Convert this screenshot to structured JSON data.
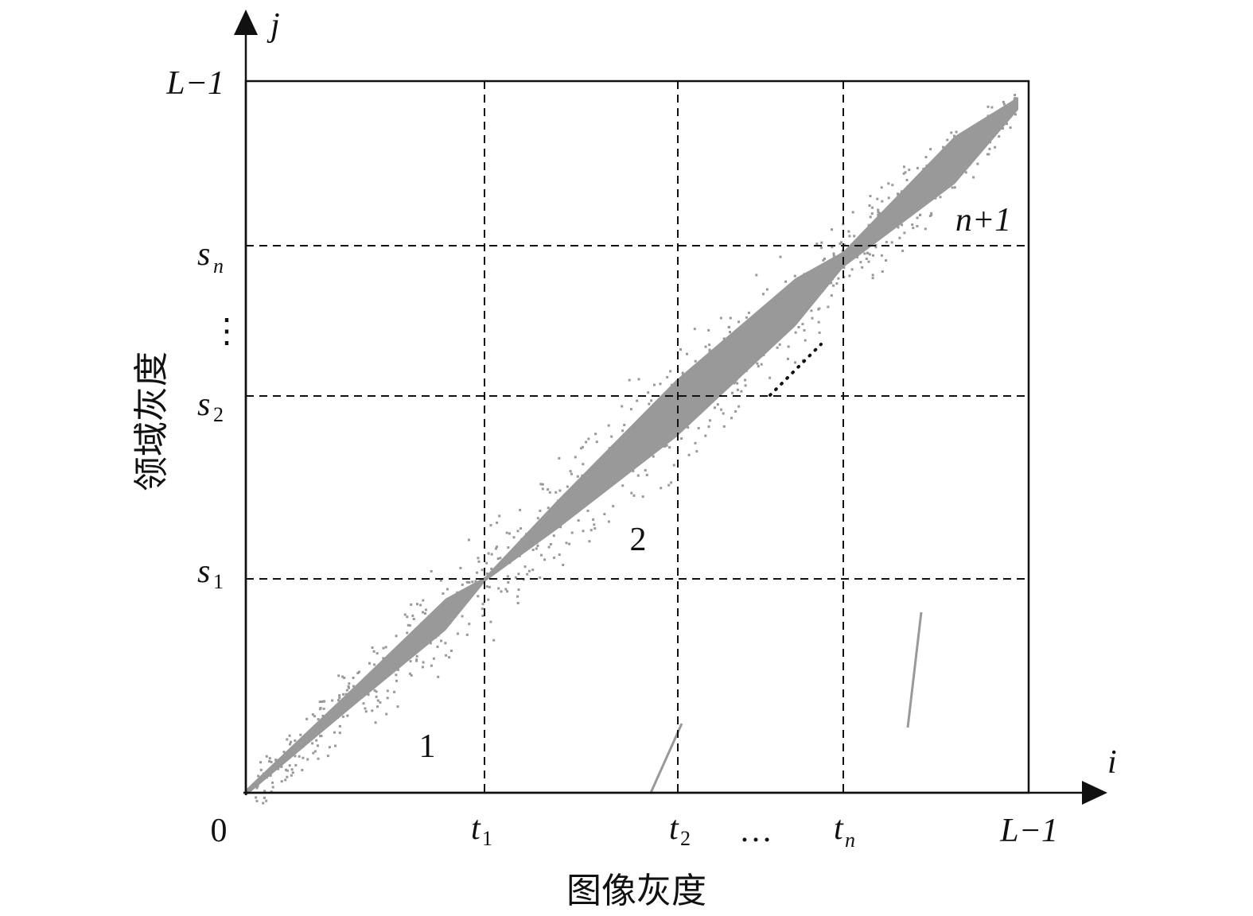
{
  "axes": {
    "y_label": "j",
    "x_label": "i",
    "y_title": "领域灰度",
    "x_title": "图像灰度",
    "origin": "0",
    "y_max": "L−1",
    "x_max": "L−1"
  },
  "y_thresholds": [
    {
      "base": "s",
      "sub": "1"
    },
    {
      "base": "s",
      "sub": "2"
    },
    {
      "base": "s",
      "sub": "n"
    }
  ],
  "y_ellipsis": "⋮",
  "x_thresholds": [
    {
      "base": "t",
      "sub": "1"
    },
    {
      "base": "t",
      "sub": "2"
    },
    {
      "base": "t",
      "sub": "n"
    }
  ],
  "x_ellipsis": "…",
  "regions": [
    "1",
    "2",
    "n+1"
  ]
}
